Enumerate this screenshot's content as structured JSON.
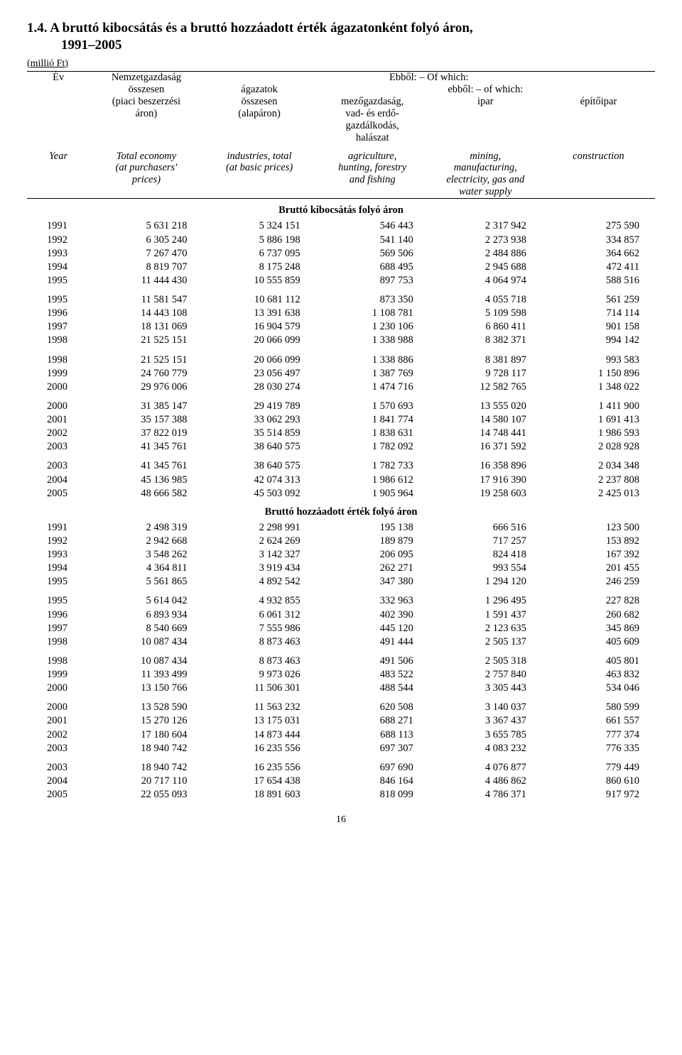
{
  "title_line1": "1.4. A bruttó kibocsátás és a bruttó hozzáadott érték ágazatonként folyó áron,",
  "title_line2": "1991–2005",
  "unit": "(millió Ft)",
  "header": {
    "col1_line1": "Év",
    "col2_line1": "Nemzetgazdaság",
    "col2_line2": "összesen",
    "col2_line3": "(piaci beszerzési",
    "col2_line4": "áron)",
    "top_right_line1": "Ebből: – Of which:",
    "col3_line1": "ágazatok",
    "col3_line2": "összesen",
    "col3_line3": "(alapáron)",
    "sub_right_line1": "ebből: – of which:",
    "col4_line1": "mezőgazdaság,",
    "col4_line2": "vad- és erdő-",
    "col4_line3": "gazdálkodás,",
    "col4_line4": "halászat",
    "col5_line1": "ipar",
    "col6_line1": "építőipar",
    "en_col1_l1": "Year",
    "en_col2_l1": "Total economy",
    "en_col2_l2": "(at purchasers'",
    "en_col2_l3": "prices)",
    "en_col3_l1": "industries, total",
    "en_col3_l2": "(at basic prices)",
    "en_col4_l1": "agriculture,",
    "en_col4_l2": "hunting, forestry",
    "en_col4_l3": "and fishing",
    "en_col5_l1": "mining,",
    "en_col5_l2": "manufacturing,",
    "en_col5_l3": "electricity, gas and",
    "en_col5_l4": "water supply",
    "en_col6_l1": "construction"
  },
  "section1_title": "Bruttó kibocsátás folyó áron",
  "section2_title": "Bruttó hozzáadott érték folyó áron",
  "blocks1": [
    [
      [
        "1991",
        "5 631 218",
        "5 324 151",
        "546 443",
        "2 317 942",
        "275 590"
      ],
      [
        "1992",
        "6 305 240",
        "5 886 198",
        "541 140",
        "2 273 938",
        "334 857"
      ],
      [
        "1993",
        "7 267 470",
        "6 737 095",
        "569 506",
        "2 484 886",
        "364 662"
      ],
      [
        "1994",
        "8 819 707",
        "8 175 248",
        "688 495",
        "2 945 688",
        "472 411"
      ],
      [
        "1995",
        "11 444 430",
        "10 555 859",
        "897 753",
        "4 064 974",
        "588 516"
      ]
    ],
    [
      [
        "1995",
        "11 581 547",
        "10 681 112",
        "873 350",
        "4 055 718",
        "561 259"
      ],
      [
        "1996",
        "14 443 108",
        "13 391 638",
        "1 108 781",
        "5 109 598",
        "714 114"
      ],
      [
        "1997",
        "18 131 069",
        "16 904 579",
        "1 230 106",
        "6 860 411",
        "901 158"
      ],
      [
        "1998",
        "21 525 151",
        "20 066 099",
        "1 338 988",
        "8 382 371",
        "994 142"
      ]
    ],
    [
      [
        "1998",
        "21 525 151",
        "20 066 099",
        "1 338 886",
        "8 381 897",
        "993 583"
      ],
      [
        "1999",
        "24 760 779",
        "23 056 497",
        "1 387 769",
        "9 728 117",
        "1 150 896"
      ],
      [
        "2000",
        "29 976 006",
        "28 030 274",
        "1 474 716",
        "12 582 765",
        "1 348 022"
      ]
    ],
    [
      [
        "2000",
        "31 385 147",
        "29 419 789",
        "1 570 693",
        "13 555 020",
        "1 411 900"
      ],
      [
        "2001",
        "35 157 388",
        "33 062 293",
        "1 841 774",
        "14 580 107",
        "1 691 413"
      ],
      [
        "2002",
        "37 822 019",
        "35 514 859",
        "1 838 631",
        "14 748 441",
        "1 986 593"
      ],
      [
        "2003",
        "41 345 761",
        "38 640 575",
        "1 782 092",
        "16 371 592",
        "2 028 928"
      ]
    ],
    [
      [
        "2003",
        "41 345 761",
        "38 640 575",
        "1 782 733",
        "16 358 896",
        "2 034 348"
      ],
      [
        "2004",
        "45 136 985",
        "42 074 313",
        "1 986 612",
        "17 916 390",
        "2 237 808"
      ],
      [
        "2005",
        "48 666 582",
        "45 503 092",
        "1 905 964",
        "19 258 603",
        "2 425 013"
      ]
    ]
  ],
  "blocks2": [
    [
      [
        "1991",
        "2 498 319",
        "2 298 991",
        "195 138",
        "666 516",
        "123 500"
      ],
      [
        "1992",
        "2 942 668",
        "2 624 269",
        "189 879",
        "717 257",
        "153 892"
      ],
      [
        "1993",
        "3 548 262",
        "3 142 327",
        "206 095",
        "824 418",
        "167 392"
      ],
      [
        "1994",
        "4 364 811",
        "3 919 434",
        "262 271",
        "993 554",
        "201 455"
      ],
      [
        "1995",
        "5 561 865",
        "4 892 542",
        "347 380",
        "1 294 120",
        "246 259"
      ]
    ],
    [
      [
        "1995",
        "5 614 042",
        "4 932 855",
        "332 963",
        "1 296 495",
        "227 828"
      ],
      [
        "1996",
        "6 893 934",
        "6 061 312",
        "402 390",
        "1 591 437",
        "260 682"
      ],
      [
        "1997",
        "8 540 669",
        "7 555 986",
        "445 120",
        "2 123 635",
        "345 869"
      ],
      [
        "1998",
        "10 087 434",
        "8 873 463",
        "491 444",
        "2 505 137",
        "405 609"
      ]
    ],
    [
      [
        "1998",
        "10 087 434",
        "8 873 463",
        "491 506",
        "2 505 318",
        "405 801"
      ],
      [
        "1999",
        "11 393 499",
        "9 973 026",
        "483 522",
        "2 757 840",
        "463 832"
      ],
      [
        "2000",
        "13 150 766",
        "11 506 301",
        "488 544",
        "3 305 443",
        "534 046"
      ]
    ],
    [
      [
        "2000",
        "13 528 590",
        "11 563 232",
        "620 508",
        "3 140 037",
        "580 599"
      ],
      [
        "2001",
        "15 270 126",
        "13 175 031",
        "688 271",
        "3 367 437",
        "661 557"
      ],
      [
        "2002",
        "17 180 604",
        "14 873 444",
        "688 113",
        "3 655 785",
        "777 374"
      ],
      [
        "2003",
        "18 940 742",
        "16 235 556",
        "697 307",
        "4 083 232",
        "776 335"
      ]
    ],
    [
      [
        "2003",
        "18 940 742",
        "16 235 556",
        "697 690",
        "4 076 877",
        "779 449"
      ],
      [
        "2004",
        "20 717 110",
        "17 654 438",
        "846 164",
        "4 486 862",
        "860 610"
      ],
      [
        "2005",
        "22 055 093",
        "18 891 603",
        "818 099",
        "4 786 371",
        "917 972"
      ]
    ]
  ],
  "page_number": "16"
}
